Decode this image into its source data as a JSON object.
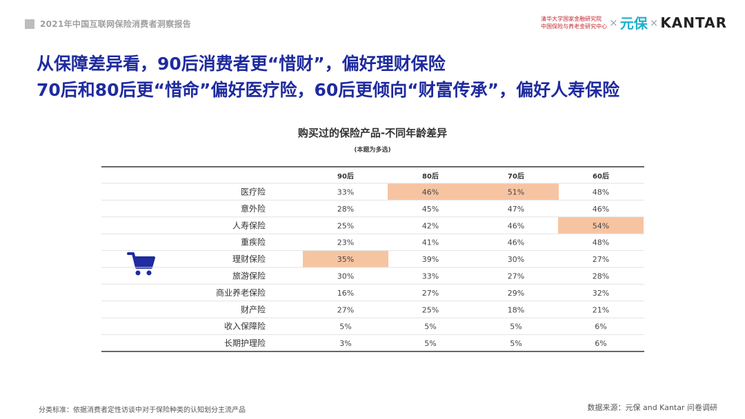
{
  "header": {
    "report_title": "2021年中国互联网保险消费者洞察报告"
  },
  "logos": {
    "tsinghua_line1": "清华大学国家金融研究院",
    "tsinghua_line2": "中国保险与养老金研究中心",
    "separator": "×",
    "yuanbao": "元保",
    "kantar": "KANTAR"
  },
  "headline": {
    "line1": "从保障差异看，90后消费者更“惜财”，偏好理财保险",
    "line2": "70后和80后更“惜命”偏好医疗险，60后更倾向“财富传承”，偏好人寿保险"
  },
  "icons": {
    "cart": "shopping-cart-icon"
  },
  "chart_data": {
    "type": "table",
    "title": "购买过的保险产品-不同年龄差异",
    "subtitle": "(本题为多选)",
    "columns": [
      "90后",
      "80后",
      "70后",
      "60后"
    ],
    "rows": [
      {
        "label": "医疗险",
        "values": [
          "33%",
          "46%",
          "51%",
          "48%"
        ],
        "highlight": [
          false,
          true,
          true,
          false
        ]
      },
      {
        "label": "意外险",
        "values": [
          "28%",
          "45%",
          "47%",
          "46%"
        ],
        "highlight": [
          false,
          false,
          false,
          false
        ]
      },
      {
        "label": "人寿保险",
        "values": [
          "25%",
          "42%",
          "46%",
          "54%"
        ],
        "highlight": [
          false,
          false,
          false,
          true
        ]
      },
      {
        "label": "重疾险",
        "values": [
          "23%",
          "41%",
          "46%",
          "48%"
        ],
        "highlight": [
          false,
          false,
          false,
          false
        ]
      },
      {
        "label": "理财保险",
        "values": [
          "35%",
          "39%",
          "30%",
          "27%"
        ],
        "highlight": [
          true,
          false,
          false,
          false
        ]
      },
      {
        "label": "旅游保险",
        "values": [
          "30%",
          "33%",
          "27%",
          "28%"
        ],
        "highlight": [
          false,
          false,
          false,
          false
        ]
      },
      {
        "label": "商业养老保险",
        "values": [
          "16%",
          "27%",
          "29%",
          "32%"
        ],
        "highlight": [
          false,
          false,
          false,
          false
        ]
      },
      {
        "label": "财产险",
        "values": [
          "27%",
          "25%",
          "18%",
          "21%"
        ],
        "highlight": [
          false,
          false,
          false,
          false
        ]
      },
      {
        "label": "收入保障险",
        "values": [
          "5%",
          "5%",
          "5%",
          "6%"
        ],
        "highlight": [
          false,
          false,
          false,
          false
        ]
      },
      {
        "label": "长期护理险",
        "values": [
          "3%",
          "5%",
          "5%",
          "6%"
        ],
        "highlight": [
          false,
          false,
          false,
          false
        ]
      }
    ],
    "colors": {
      "highlight": "#f7c4a2",
      "row_divider": "#e2e2e2",
      "border": "#333333"
    }
  },
  "footer": {
    "note": "分类标准：依据消费者定性访谈中对于保险种类的认知划分主流产品",
    "source": "数据来源：元保 and Kantar 问卷调研"
  }
}
